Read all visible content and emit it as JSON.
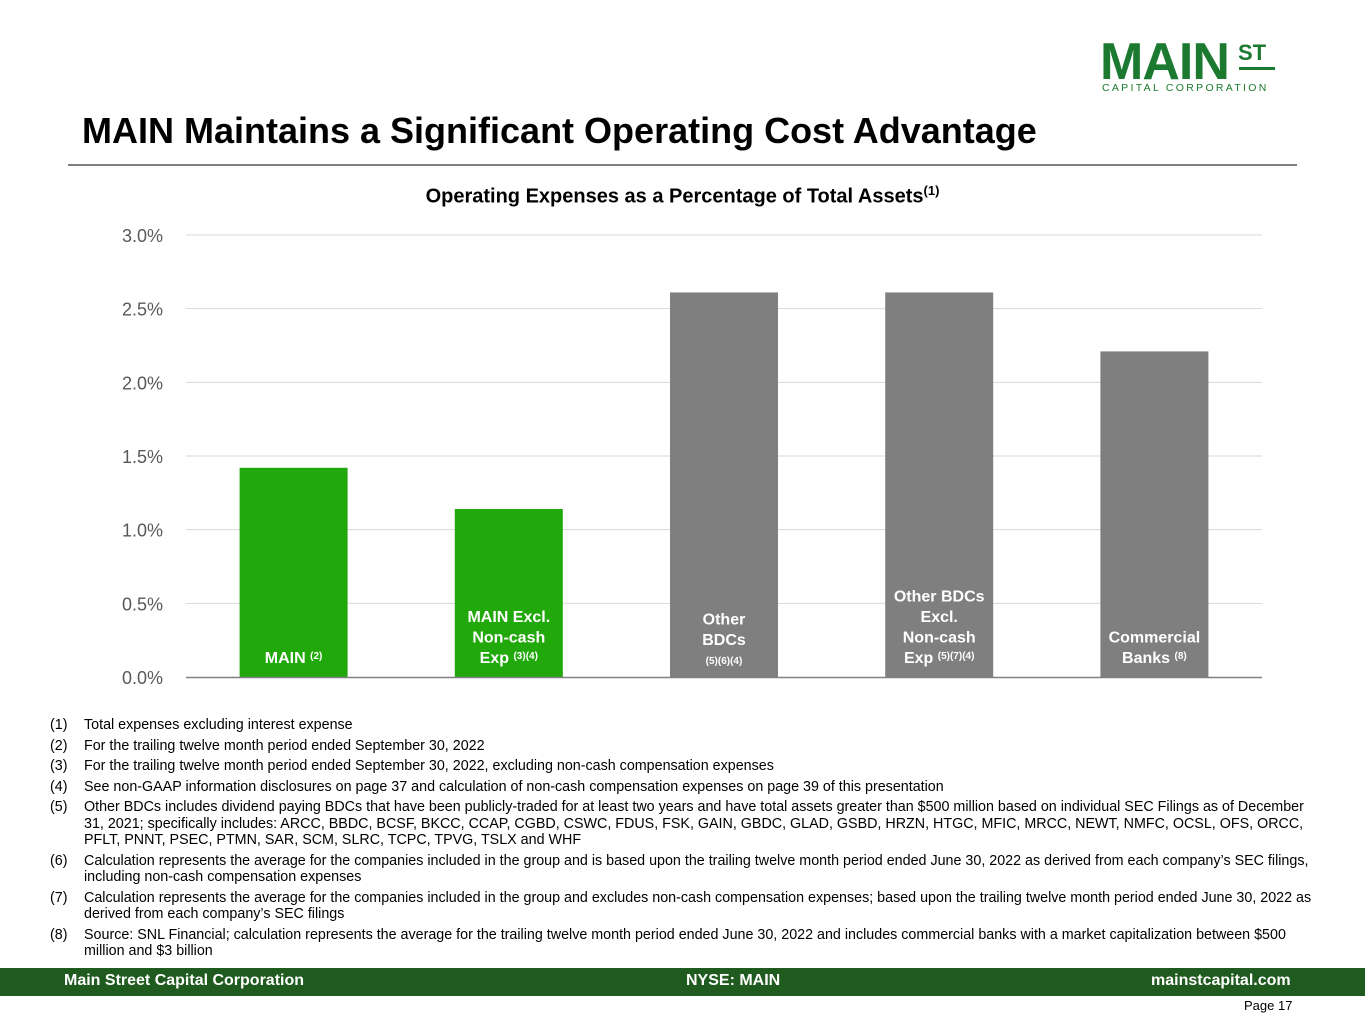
{
  "header": {
    "logo_main": "MAIN",
    "logo_st": "ST",
    "logo_sub": "CAPITAL CORPORATION",
    "title": "MAIN Maintains a Significant Operating Cost Advantage"
  },
  "chart_data": {
    "type": "bar",
    "title": "Operating Expenses as a Percentage of Total Assets",
    "title_sup": "(1)",
    "categories": [
      {
        "lines": [
          "MAIN"
        ],
        "sup": "(2)",
        "sup_style": "inline"
      },
      {
        "lines": [
          "MAIN Excl.",
          "Non-cash",
          "Exp"
        ],
        "sup": "(3)(4)",
        "sup_style": "inline"
      },
      {
        "lines": [
          "Other",
          "BDCs"
        ],
        "sup": "(5)(6)(4)",
        "sup_style": "below"
      },
      {
        "lines": [
          "Other BDCs",
          "Excl.",
          "Non-cash",
          "Exp"
        ],
        "sup": "(5)(7)(4)",
        "sup_style": "inline"
      },
      {
        "lines": [
          "Commercial",
          "Banks"
        ],
        "sup": "(8)",
        "sup_style": "inline"
      }
    ],
    "values": [
      1.42,
      1.14,
      2.61,
      2.61,
      2.21
    ],
    "bar_colors": [
      "#21a80a",
      "#21a80a",
      "#7f7f7f",
      "#7f7f7f",
      "#7f7f7f"
    ],
    "ylim": [
      0,
      3.0
    ],
    "yticks": [
      "0.0%",
      "0.5%",
      "1.0%",
      "1.5%",
      "2.0%",
      "2.5%",
      "3.0%"
    ],
    "grid": true,
    "xlabel": "",
    "ylabel": ""
  },
  "footnotes": [
    {
      "num": "(1)",
      "text": "Total expenses excluding interest expense"
    },
    {
      "num": "(2)",
      "text": "For the trailing twelve month period ended September 30, 2022"
    },
    {
      "num": "(3)",
      "text": "For the trailing twelve month period ended September 30, 2022, excluding non-cash compensation expenses"
    },
    {
      "num": "(4)",
      "text": "See non-GAAP information disclosures on page 37 and calculation of non-cash compensation expenses on page 39 of this presentation"
    },
    {
      "num": "(5)",
      "text": "Other BDCs includes dividend paying BDCs that have been publicly-traded for at least two years and have total assets greater than $500 million based on individual SEC Filings as of December 31, 2021; specifically includes: ARCC, BBDC, BCSF, BKCC, CCAP, CGBD, CSWC, FDUS, FSK, GAIN, GBDC, GLAD, GSBD, HRZN, HTGC, MFIC, MRCC, NEWT, NMFC, OCSL, OFS, ORCC, PFLT, PNNT, PSEC, PTMN, SAR, SCM, SLRC, TCPC, TPVG, TSLX and WHF"
    },
    {
      "num": "(6)",
      "text": "Calculation represents the average for the companies included in the group and is based upon the trailing twelve month period ended June 30, 2022 as derived from each company’s SEC filings, including non-cash compensation expenses"
    },
    {
      "num": "(7)",
      "text": "Calculation represents the average for the companies included in the group and excludes non-cash compensation expenses; based upon the trailing twelve month period ended June 30, 2022  as derived from each company’s SEC filings"
    },
    {
      "num": "(8)",
      "text": "Source: SNL Financial; calculation represents the average for the trailing twelve month period ended June 30, 2022 and includes commercial banks with a market capitalization between $500 million and $3 billion"
    }
  ],
  "footer": {
    "company": "Main Street Capital Corporation",
    "ticker": "NYSE: MAIN",
    "website": "mainstcapital.com",
    "page": "Page  17"
  }
}
